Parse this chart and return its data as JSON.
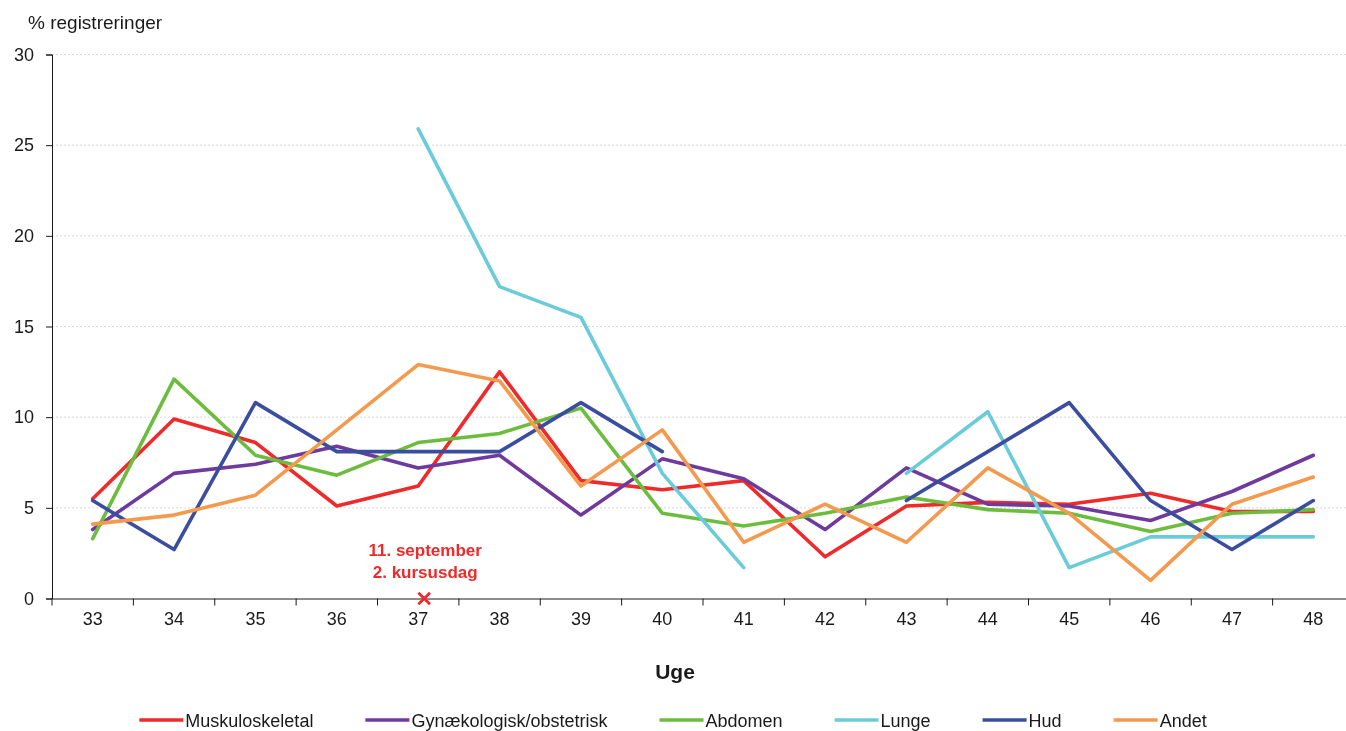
{
  "chart_data": {
    "type": "line",
    "ylabel": "% registreringer",
    "xlabel": "Uge",
    "categories": [
      "33",
      "34",
      "35",
      "36",
      "37",
      "38",
      "39",
      "40",
      "41",
      "42",
      "43",
      "44",
      "45",
      "46",
      "47",
      "48"
    ],
    "ylim": [
      0,
      30
    ],
    "yticks": [
      0,
      5,
      10,
      15,
      20,
      25,
      30
    ],
    "grid": "y",
    "legend": "bottom",
    "annotations": [
      "11. september\n2. kursusdag"
    ],
    "series": [
      {
        "name": "Muskuloskeletal",
        "color": "#ee2a2a",
        "values": [
          5.5,
          9.9,
          8.6,
          5.1,
          6.2,
          12.5,
          6.5,
          6.0,
          6.5,
          2.3,
          5.1,
          5.3,
          5.2,
          5.8,
          4.8,
          4.8
        ]
      },
      {
        "name": "Gynækologisk/obstetrisk",
        "color": "#6f3a9e",
        "values": [
          3.8,
          6.9,
          7.4,
          8.4,
          7.2,
          7.9,
          4.6,
          7.7,
          6.6,
          3.8,
          7.2,
          5.2,
          5.1,
          4.3,
          5.9,
          7.9
        ]
      },
      {
        "name": "Abdomen",
        "color": "#6cbd3e",
        "values": [
          3.3,
          12.1,
          7.9,
          6.8,
          8.6,
          9.1,
          10.5,
          4.7,
          4.0,
          4.7,
          5.6,
          4.9,
          4.7,
          3.7,
          4.7,
          4.9
        ]
      },
      {
        "name": "Lunge",
        "color": "#6ccbd9",
        "values": [
          null,
          null,
          null,
          null,
          25.9,
          17.2,
          15.5,
          6.9,
          1.7,
          null,
          6.9,
          10.3,
          1.7,
          3.4,
          3.4,
          3.4
        ]
      },
      {
        "name": "Hud",
        "color": "#3a4d9f",
        "values": [
          5.4,
          2.7,
          10.8,
          8.1,
          8.1,
          8.1,
          10.8,
          8.1,
          null,
          null,
          5.4,
          8.1,
          10.8,
          5.4,
          2.7,
          5.4
        ]
      },
      {
        "name": "Andet",
        "color": "#f39a4e",
        "values": [
          4.1,
          4.6,
          5.7,
          9.3,
          12.9,
          12.0,
          6.2,
          9.3,
          3.1,
          5.2,
          3.1,
          7.2,
          4.7,
          1.0,
          5.2,
          6.7
        ]
      },
      {
        "type": "scatter",
        "color": "#ee2a2a",
        "marker": "cross",
        "x": [
          "37"
        ],
        "values": [
          0
        ]
      }
    ]
  }
}
